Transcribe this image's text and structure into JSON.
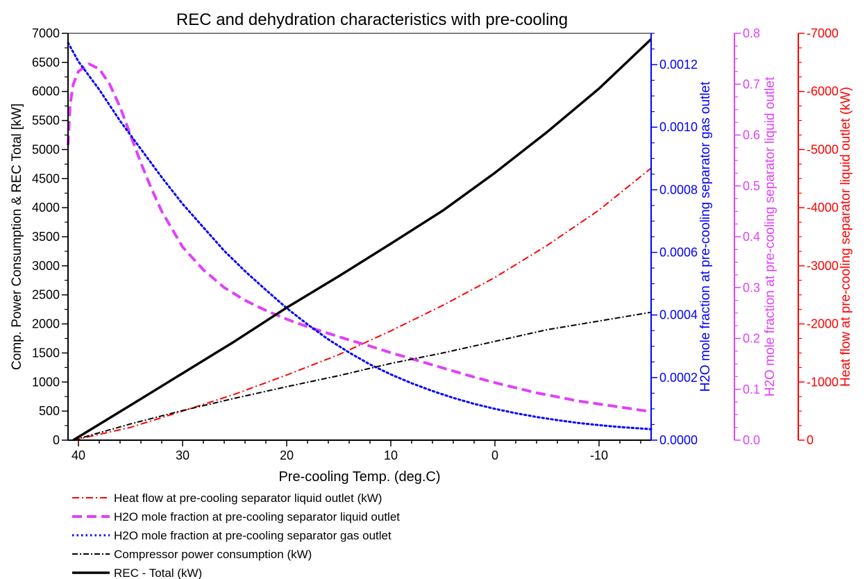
{
  "chart_data": {
    "type": "line",
    "title": "REC and dehydration characteristics with pre-cooling",
    "xlabel": "Pre-cooling Temp. (deg.C)",
    "xlim": [
      41,
      -15
    ],
    "x_ticks": [
      "40",
      "30",
      "20",
      "10",
      "0",
      "-10"
    ],
    "axes": [
      {
        "id": "left",
        "label": "Comp. Power Consumption & REC Total [kW]",
        "color": "#000000",
        "ylim": [
          0,
          7000
        ],
        "ticks": [
          "0",
          "500",
          "1000",
          "1500",
          "2000",
          "2500",
          "3000",
          "3500",
          "4000",
          "4500",
          "5000",
          "5500",
          "6000",
          "6500",
          "7000"
        ]
      },
      {
        "id": "gas",
        "label": "H2O mole fraction at pre-cooling separator gas outlet",
        "color": "#0000ff",
        "ylim": [
          0,
          0.0013
        ],
        "ticks": [
          "0.0000",
          "0.0002",
          "0.0004",
          "0.0006",
          "0.0008",
          "0.0010",
          "0.0012"
        ]
      },
      {
        "id": "liq",
        "label": "H2O mole fraction at pre-cooling separator liquid outlet",
        "color": "#e040fb",
        "ylim": [
          0,
          0.8
        ],
        "ticks": [
          "0.0",
          "0.1",
          "0.2",
          "0.3",
          "0.4",
          "0.5",
          "0.6",
          "0.7",
          "0.8"
        ]
      },
      {
        "id": "heat",
        "label": "Heat flow at pre-cooling separator liquid outlet (kW)",
        "color": "#ff0000",
        "ylim": [
          0,
          -7000
        ],
        "ticks": [
          "0",
          "-1000",
          "-2000",
          "-3000",
          "-4000",
          "-5000",
          "-6000",
          "-7000"
        ]
      }
    ],
    "series": [
      {
        "name": "Heat flow at pre-cooling separator liquid outlet (kW)",
        "axis": "heat",
        "color": "#ff0000",
        "dash": "10 4 2 4",
        "width": 2,
        "x": [
          40.5,
          35,
          30,
          25,
          20,
          15,
          10,
          5,
          0,
          -5,
          -10,
          -15
        ],
        "y": [
          0,
          -220,
          -500,
          -790,
          -1120,
          -1470,
          -1880,
          -2320,
          -2800,
          -3350,
          -3960,
          -4680
        ]
      },
      {
        "name": "H2O mole fraction at pre-cooling separator liquid outlet",
        "axis": "liq",
        "color": "#e040fb",
        "dash": "14 7",
        "width": 4,
        "x": [
          41,
          40.8,
          40.5,
          40,
          39,
          38,
          37,
          36,
          35,
          34,
          33,
          32,
          30,
          28,
          26,
          24,
          22,
          20,
          18,
          16,
          14,
          12,
          10,
          8,
          6,
          4,
          2,
          0,
          -2,
          -4,
          -6,
          -8,
          -10,
          -12,
          -15
        ],
        "y": [
          0.58,
          0.66,
          0.7,
          0.725,
          0.74,
          0.73,
          0.7,
          0.655,
          0.6,
          0.545,
          0.495,
          0.45,
          0.38,
          0.335,
          0.3,
          0.275,
          0.255,
          0.238,
          0.223,
          0.21,
          0.197,
          0.185,
          0.172,
          0.16,
          0.148,
          0.136,
          0.124,
          0.113,
          0.103,
          0.093,
          0.085,
          0.077,
          0.071,
          0.065,
          0.056
        ]
      },
      {
        "name": "H2O mole fraction at pre-cooling separator gas outlet",
        "axis": "gas",
        "color": "#0000ff",
        "dash": "2.5 4",
        "width": 3,
        "x": [
          41,
          40,
          38,
          36,
          34,
          32,
          30,
          28,
          26,
          24,
          22,
          20,
          18,
          16,
          14,
          12,
          10,
          8,
          6,
          4,
          2,
          0,
          -2,
          -4,
          -6,
          -8,
          -10,
          -12,
          -15
        ],
        "y": [
          0.00127,
          0.00121,
          0.00112,
          0.00102,
          0.00093,
          0.00084,
          0.000755,
          0.00068,
          0.000605,
          0.00054,
          0.00048,
          0.000422,
          0.00037,
          0.000322,
          0.00028,
          0.000242,
          0.00021,
          0.000182,
          0.000157,
          0.000135,
          0.000116,
          0.0001,
          8.6e-05,
          7.4e-05,
          6.4e-05,
          5.5e-05,
          4.8e-05,
          4.2e-05,
          3.5e-05
        ]
      },
      {
        "name": "Compressor power consumption (kW)",
        "axis": "left",
        "color": "#000000",
        "dash": "8 3 2 3",
        "width": 2,
        "x": [
          40.5,
          35,
          30,
          25,
          20,
          15,
          10,
          5,
          0,
          -5,
          -10,
          -15
        ],
        "y": [
          0,
          280,
          510,
          720,
          920,
          1110,
          1320,
          1500,
          1700,
          1900,
          2050,
          2200
        ]
      },
      {
        "name": "REC - Total (kW)",
        "axis": "left",
        "color": "#000000",
        "dash": "",
        "width": 3.5,
        "x": [
          40.5,
          35,
          30,
          25,
          20,
          15,
          10,
          5,
          0,
          -5,
          -10,
          -15
        ],
        "y": [
          0,
          600,
          1150,
          1700,
          2280,
          2820,
          3380,
          3950,
          4600,
          5300,
          6050,
          6900
        ]
      }
    ],
    "legend_position": "bottom-left"
  }
}
